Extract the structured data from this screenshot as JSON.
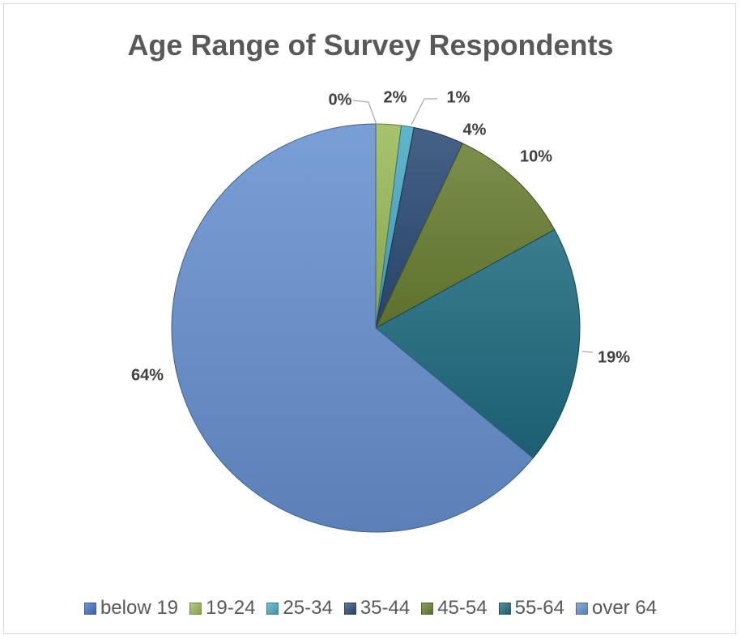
{
  "chart_data": {
    "type": "pie",
    "title": "Age Range of Survey Respondents",
    "slices": [
      {
        "name": "below 19",
        "value": 0,
        "label": "0%",
        "color": "#4472c4"
      },
      {
        "name": "19-24",
        "value": 2,
        "label": "2%",
        "color": "#9bbb59"
      },
      {
        "name": "25-34",
        "value": 1,
        "label": "1%",
        "color": "#4bacc6"
      },
      {
        "name": "35-44",
        "value": 4,
        "label": "4%",
        "color": "#2c4d75"
      },
      {
        "name": "45-54",
        "value": 10,
        "label": "10%",
        "color": "#6a7f32"
      },
      {
        "name": "55-64",
        "value": 19,
        "label": "19%",
        "color": "#1f6b80"
      },
      {
        "name": "over 64",
        "value": 64,
        "label": "64%",
        "color": "#6792d0"
      }
    ],
    "start_angle_deg": 0,
    "direction": "clockwise",
    "legend_position": "bottom"
  }
}
